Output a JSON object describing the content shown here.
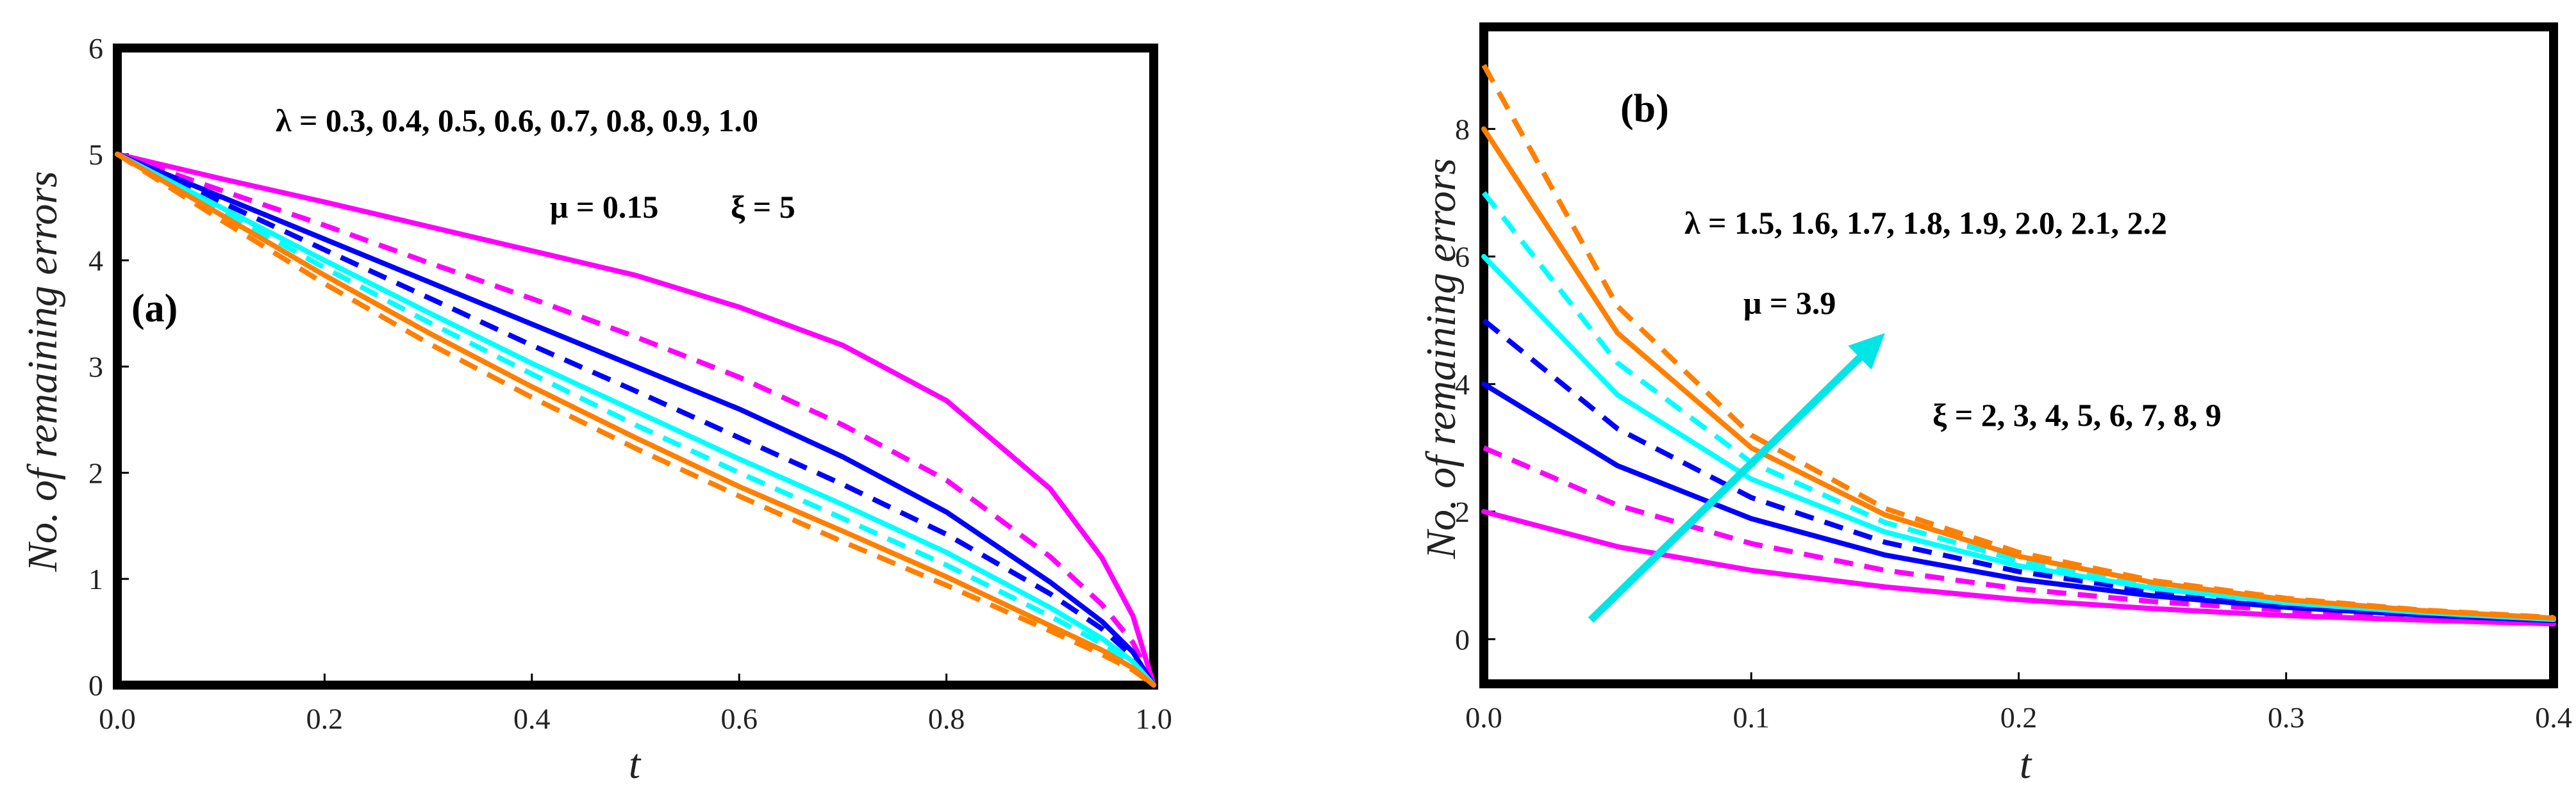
{
  "chart_data": [
    {
      "type": "line",
      "panel_label": "(a)",
      "xlabel": "t",
      "ylabel": "No. of remaining errors",
      "xlim": [
        0,
        1.0
      ],
      "ylim": [
        0,
        6
      ],
      "xticks": [
        "0.0",
        "0.2",
        "0.4",
        "0.6",
        "0.8",
        "1.0"
      ],
      "yticks": [
        "0",
        "1",
        "2",
        "3",
        "4",
        "5",
        "6"
      ],
      "annotations": {
        "lambda": "λ = 0.3, 0.4, 0.5, 0.6, 0.7, 0.8, 0.9, 1.0",
        "mu": "μ = 0.15",
        "xi": "ξ = 5"
      },
      "x": [
        0.0,
        0.1,
        0.2,
        0.3,
        0.4,
        0.5,
        0.6,
        0.7,
        0.8,
        0.9,
        0.95,
        0.98,
        1.0
      ],
      "series": [
        {
          "name": "λ = 0.3",
          "color": "#ff00ff",
          "dash": "solid",
          "values": [
            5.0,
            4.77,
            4.55,
            4.32,
            4.09,
            3.86,
            3.56,
            3.2,
            2.68,
            1.85,
            1.2,
            0.65,
            0.0
          ]
        },
        {
          "name": "λ = 0.4",
          "color": "#ff00ff",
          "dash": "dashed",
          "values": [
            5.0,
            4.66,
            4.33,
            3.98,
            3.64,
            3.28,
            2.9,
            2.45,
            1.93,
            1.21,
            0.76,
            0.4,
            0.0
          ]
        },
        {
          "name": "λ = 0.5",
          "color": "#0000ff",
          "dash": "solid",
          "values": [
            5.0,
            4.6,
            4.2,
            3.8,
            3.4,
            3.0,
            2.6,
            2.15,
            1.63,
            0.97,
            0.6,
            0.31,
            0.0
          ]
        },
        {
          "name": "λ = 0.6",
          "color": "#0000ff",
          "dash": "dashed",
          "values": [
            5.0,
            4.55,
            4.1,
            3.65,
            3.2,
            2.77,
            2.33,
            1.89,
            1.42,
            0.86,
            0.53,
            0.27,
            0.0
          ]
        },
        {
          "name": "λ = 0.7",
          "color": "#00ffff",
          "dash": "solid",
          "values": [
            5.0,
            4.5,
            4.0,
            3.51,
            3.03,
            2.58,
            2.13,
            1.7,
            1.25,
            0.73,
            0.44,
            0.22,
            0.0
          ]
        },
        {
          "name": "λ = 0.8",
          "color": "#00ffff",
          "dash": "dashed",
          "values": [
            5.0,
            4.47,
            3.93,
            3.42,
            2.93,
            2.45,
            2.0,
            1.57,
            1.13,
            0.65,
            0.39,
            0.19,
            0.0
          ]
        },
        {
          "name": "λ = 0.9",
          "color": "#ff7f00",
          "dash": "solid",
          "values": [
            5.0,
            4.43,
            3.86,
            3.32,
            2.81,
            2.33,
            1.87,
            1.45,
            1.02,
            0.56,
            0.33,
            0.16,
            0.0
          ]
        },
        {
          "name": "λ = 1.0",
          "color": "#ff7f00",
          "dash": "dashed",
          "values": [
            5.0,
            4.38,
            3.78,
            3.22,
            2.71,
            2.23,
            1.78,
            1.35,
            0.94,
            0.51,
            0.29,
            0.14,
            0.0
          ]
        }
      ]
    },
    {
      "type": "line",
      "panel_label": "(b)",
      "xlabel": "t",
      "ylabel": "No. of remaining errors",
      "xlim": [
        0,
        0.4
      ],
      "ylim": [
        -0.7,
        9.6
      ],
      "xticks": [
        "0.0",
        "0.1",
        "0.2",
        "0.3",
        "0.4"
      ],
      "yticks": [
        "0",
        "2",
        "4",
        "6",
        "8"
      ],
      "annotations": {
        "lambda": "λ = 1.5, 1.6, 1.7, 1.8, 1.9, 2.0, 2.1, 2.2",
        "mu": "μ = 3.9",
        "xi": "ξ = 2, 3, 4, 5, 6, 7, 8, 9"
      },
      "arrow": {
        "from": [
          0.04,
          0.3
        ],
        "to": [
          0.15,
          4.8
        ],
        "color": "#00e5e5"
      },
      "x": [
        0.0,
        0.05,
        0.1,
        0.15,
        0.2,
        0.25,
        0.3,
        0.35,
        0.4
      ],
      "series": [
        {
          "name": "ξ = 2",
          "color": "#ff00ff",
          "dash": "solid",
          "values": [
            2.0,
            1.45,
            1.08,
            0.82,
            0.62,
            0.48,
            0.37,
            0.3,
            0.24
          ]
        },
        {
          "name": "ξ = 3",
          "color": "#ff00ff",
          "dash": "dashed",
          "values": [
            3.0,
            2.1,
            1.5,
            1.08,
            0.79,
            0.59,
            0.45,
            0.35,
            0.27
          ]
        },
        {
          "name": "ξ = 4",
          "color": "#0000ff",
          "dash": "solid",
          "values": [
            4.0,
            2.72,
            1.89,
            1.32,
            0.94,
            0.68,
            0.5,
            0.38,
            0.29
          ]
        },
        {
          "name": "ξ = 5",
          "color": "#0000ff",
          "dash": "dashed",
          "values": [
            5.0,
            3.3,
            2.22,
            1.52,
            1.06,
            0.75,
            0.54,
            0.4,
            0.3
          ]
        },
        {
          "name": "ξ = 6",
          "color": "#00ffff",
          "dash": "solid",
          "values": [
            6.0,
            3.83,
            2.51,
            1.68,
            1.15,
            0.8,
            0.57,
            0.42,
            0.31
          ]
        },
        {
          "name": "ξ = 7",
          "color": "#00ffff",
          "dash": "dashed",
          "values": [
            7.0,
            4.33,
            2.77,
            1.83,
            1.23,
            0.85,
            0.6,
            0.43,
            0.32
          ]
        },
        {
          "name": "ξ = 8",
          "color": "#ff7f00",
          "dash": "solid",
          "values": [
            8.0,
            4.8,
            3.0,
            1.95,
            1.3,
            0.89,
            0.62,
            0.45,
            0.33
          ]
        },
        {
          "name": "ξ = 9",
          "color": "#ff7f00",
          "dash": "dashed",
          "values": [
            9.0,
            5.22,
            3.2,
            2.05,
            1.36,
            0.92,
            0.64,
            0.46,
            0.34
          ]
        }
      ]
    }
  ]
}
